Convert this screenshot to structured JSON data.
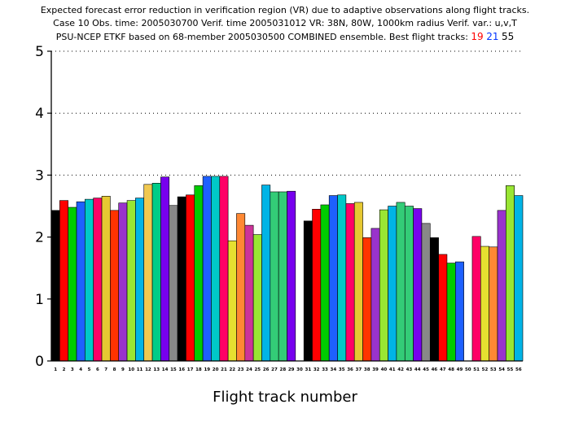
{
  "chart_data": {
    "type": "bar",
    "title_lines": [
      "Expected forecast error reduction in verification region (VR) due to adaptive observations along flight tracks.",
      "Case 10   Obs. time: 2005030700   Verif. time 2005031012   VR: 38N, 80W, 1000km radius   Verif. var.: u,v,T"
    ],
    "title_line3_prefix": "PSU-NCEP ETKF based on 68-member 2005030500 COMBINED ensemble.   Best flight tracks: ",
    "best_tracks": [
      "19",
      "21",
      "55"
    ],
    "best_track_colors": [
      "#ff0000",
      "#0033ff",
      "#000000"
    ],
    "xlabel": "Flight track number",
    "ylim": [
      0,
      5
    ],
    "yticks": [
      "0",
      "1",
      "2",
      "3",
      "4",
      "5"
    ],
    "grid": "dotted horizontal at 3, 4, 5",
    "categories": [
      "1",
      "2",
      "3",
      "4",
      "5",
      "6",
      "7",
      "8",
      "9",
      "10",
      "11",
      "12",
      "13",
      "14",
      "15",
      "16",
      "17",
      "18",
      "19",
      "20",
      "21",
      "22",
      "23",
      "24",
      "25",
      "26",
      "27",
      "28",
      "29",
      "30",
      "31",
      "32",
      "33",
      "34",
      "35",
      "36",
      "37",
      "38",
      "39",
      "40",
      "41",
      "42",
      "43",
      "44",
      "45",
      "46",
      "47",
      "48",
      "49",
      "50",
      "51",
      "52",
      "53",
      "54",
      "55",
      "56"
    ],
    "values": [
      2.43,
      2.59,
      2.48,
      2.57,
      2.61,
      2.63,
      2.66,
      2.43,
      2.55,
      2.59,
      2.63,
      2.85,
      2.87,
      2.97,
      2.51,
      2.65,
      2.68,
      2.83,
      2.98,
      2.98,
      2.98,
      1.94,
      2.38,
      2.19,
      2.04,
      2.84,
      2.73,
      2.73,
      2.74,
      0,
      2.26,
      2.45,
      2.52,
      2.67,
      2.68,
      2.54,
      2.56,
      1.99,
      2.14,
      2.44,
      2.5,
      2.56,
      2.5,
      2.46,
      2.22,
      1.99,
      1.72,
      1.58,
      1.6,
      0,
      2.01,
      1.85,
      1.84,
      2.43,
      2.83,
      2.67
    ],
    "colors": [
      "#000000",
      "#ff0000",
      "#00cc00",
      "#1e60ff",
      "#00c8c8",
      "#ff0066",
      "#e6c832",
      "#ff3300",
      "#9933cc",
      "#99e633",
      "#00b4e6",
      "#f0c850",
      "#00cc88",
      "#7700ee",
      "#888888",
      "#000000",
      "#ff0000",
      "#00cc00",
      "#1e60ff",
      "#00c8c8",
      "#ff0066",
      "#e6e030",
      "#ff8833",
      "#cc3399",
      "#99e633",
      "#00b4e6",
      "#33cc77",
      "#33cc77",
      "#7700ee",
      "#888888",
      "#000000",
      "#ff0000",
      "#00cc00",
      "#1e60ff",
      "#00c8c8",
      "#ff0066",
      "#e6c832",
      "#ff3300",
      "#9933cc",
      "#99e633",
      "#00b4e6",
      "#33cc77",
      "#33cc77",
      "#7700ee",
      "#888888",
      "#000000",
      "#ff0000",
      "#00cc00",
      "#1e60ff",
      "#00c8c8",
      "#ff0066",
      "#e6e030",
      "#ff8833",
      "#9933cc",
      "#99e633",
      "#00b4e6"
    ]
  }
}
